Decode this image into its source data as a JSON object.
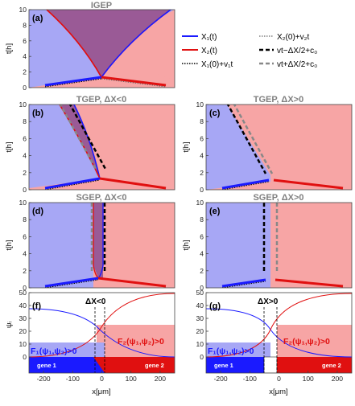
{
  "colors": {
    "blue": "#1a1aff",
    "red": "#e01010",
    "blue_fill": "#a7a7f5",
    "red_fill": "#f7a5a5",
    "purple_fill": "#9a5a96"
  },
  "legend": {
    "x1": "X₁(t)",
    "x2": "X₂(t)",
    "x1v": "X₁(0)+v₁t",
    "x2v": "X₂(0)+v₂t",
    "vtm": "vt−ΔX/2+c₀",
    "vtp": "vt+ΔX/2+c₀"
  },
  "panels": {
    "a": {
      "label": "(a)",
      "title": "IGEP"
    },
    "b": {
      "label": "(b)",
      "title": "TGEP, ΔX<0"
    },
    "c": {
      "label": "(c)",
      "title": "TGEP, ΔX>0"
    },
    "d": {
      "label": "(d)",
      "title": "SGEP, ΔX<0"
    },
    "e": {
      "label": "(e)",
      "title": "SGEP, ΔX>0"
    },
    "f": {
      "label": "(f)",
      "dx": "ΔX<0"
    },
    "g": {
      "label": "(g)",
      "dx": "ΔX>0"
    }
  },
  "axes": {
    "t_label": "t[h]",
    "psi_label": "ψᵢ",
    "x_label": "x[μm]",
    "t_ticks": [
      "0",
      "2",
      "4",
      "6",
      "8",
      "10"
    ],
    "psi_ticks": [
      "0",
      "10",
      "20",
      "30",
      "40",
      "50"
    ],
    "x_ticks": [
      "-200",
      "-100",
      "0",
      "100",
      "200"
    ]
  },
  "regions": {
    "f1": "F₁(ψ₁,ψ₂)>0",
    "f2": "F₂(ψ₁,ψ₂)>0"
  },
  "genes": {
    "gene1": "gene 1",
    "gene2": "gene 2"
  }
}
